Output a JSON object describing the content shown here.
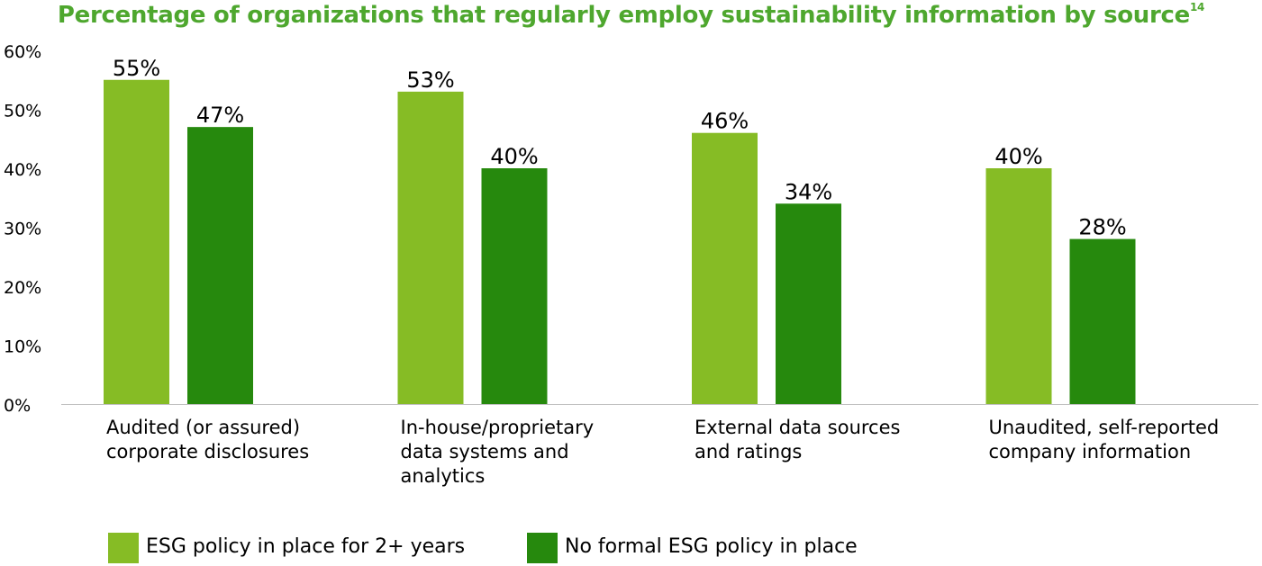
{
  "chart_data": {
    "type": "bar",
    "title": "Percentage of organizations that regularly employ sustainability information by source",
    "title_superscript": "14",
    "categories": [
      [
        "Audited (or assured)",
        "corporate disclosures"
      ],
      [
        "In-house/proprietary",
        "data systems and",
        "analytics"
      ],
      [
        "External data sources",
        "and ratings"
      ],
      [
        "Unaudited, self-reported",
        "company information"
      ]
    ],
    "series": [
      {
        "name": "ESG policy in place for 2+ years",
        "color": "#86bc25",
        "values": [
          55,
          53,
          46,
          40
        ]
      },
      {
        "name": "No formal ESG policy in place",
        "color": "#26890d",
        "values": [
          47,
          40,
          34,
          28
        ]
      }
    ],
    "value_suffix": "%",
    "ylim": [
      0,
      60
    ],
    "yticks": [
      0,
      10,
      20,
      30,
      40,
      50,
      60
    ],
    "ytick_labels": [
      "0%",
      "10%",
      "20%",
      "30%",
      "40%",
      "50%",
      "60%"
    ],
    "xlabel": "",
    "ylabel": "",
    "grid": false,
    "legend_position": "bottom"
  }
}
